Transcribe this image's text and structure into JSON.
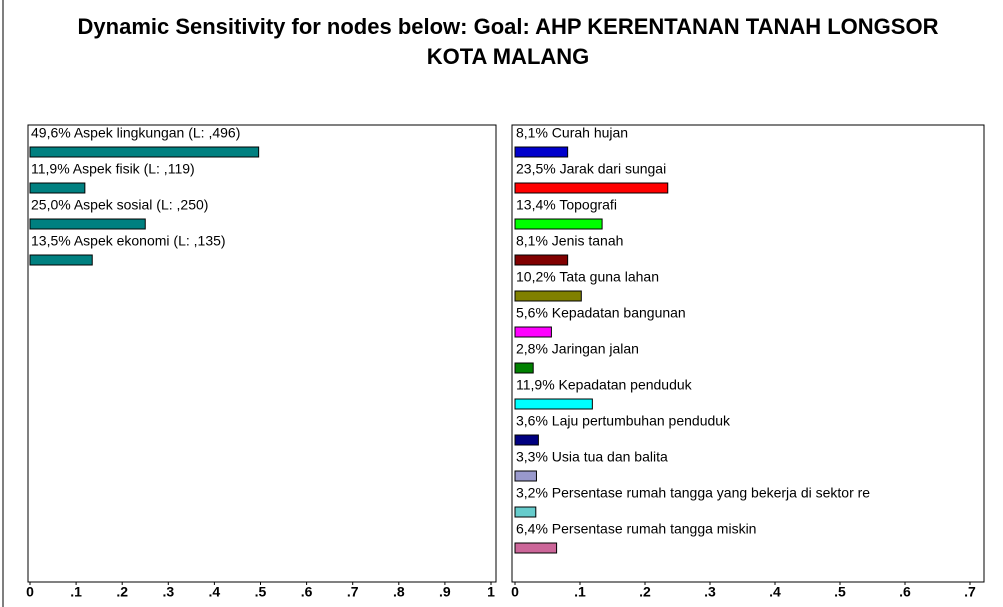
{
  "title": "Dynamic Sensitivity for nodes below: Goal: AHP KERENTANAN TANAH LONGSOR KOTA MALANG",
  "chart_data": [
    {
      "type": "barh",
      "values": [
        0.496,
        0.119,
        0.25,
        0.135
      ],
      "value_labels": [
        "49,6% Aspek lingkungan (L: ,496)",
        "11,9% Aspek fisik (L: ,119)",
        "25,0% Aspek sosial (L: ,250)",
        "13,5% Aspek ekonomi (L: ,135)"
      ],
      "color": "#008080",
      "xlim": [
        0,
        1
      ],
      "xticks": [
        0,
        {
          "value": 0.1,
          "label": ".1"
        },
        {
          "value": 0.2,
          "label": ".2"
        },
        {
          "value": 0.3,
          "label": ".3"
        },
        {
          "value": 0.4,
          "label": ".4"
        },
        {
          "value": 0.5,
          "label": ".5"
        },
        {
          "value": 0.6,
          "label": ".6"
        },
        {
          "value": 0.7,
          "label": ".7"
        },
        {
          "value": 0.8,
          "label": ".8"
        },
        {
          "value": 0.9,
          "label": ".9"
        },
        1
      ]
    },
    {
      "type": "barh",
      "values": [
        0.081,
        0.235,
        0.134,
        0.081,
        0.102,
        0.056,
        0.028,
        0.119,
        0.036,
        0.033,
        0.032,
        0.064
      ],
      "value_labels": [
        "8,1% Curah hujan",
        "23,5% Jarak dari sungai",
        "13,4% Topografi",
        "8,1% Jenis tanah",
        "10,2% Tata guna lahan",
        "5,6% Kepadatan bangunan",
        "2,8% Jaringan jalan",
        "11,9% Kepadatan penduduk",
        "3,6% Laju pertumbuhan penduduk",
        "3,3% Usia tua dan balita",
        "3,2% Persentase rumah tangga yang bekerja di sektor re",
        "6,4% Persentase rumah tangga miskin"
      ],
      "colors": [
        "#0000cc",
        "#ff0000",
        "#00ff00",
        "#800000",
        "#808000",
        "#ff00ff",
        "#008000",
        "#00ffff",
        "#000080",
        "#9999cc",
        "#66cccc",
        "#cc6699"
      ],
      "xlim": [
        0,
        0.7
      ],
      "xticks": [
        0,
        {
          "value": 0.1,
          "label": ".1"
        },
        {
          "value": 0.2,
          "label": ".2"
        },
        {
          "value": 0.3,
          "label": ".3"
        },
        {
          "value": 0.4,
          "label": ".4"
        },
        {
          "value": 0.5,
          "label": ".5"
        },
        {
          "value": 0.6,
          "label": ".6"
        },
        {
          "value": 0.7,
          "label": ".7"
        }
      ]
    }
  ]
}
